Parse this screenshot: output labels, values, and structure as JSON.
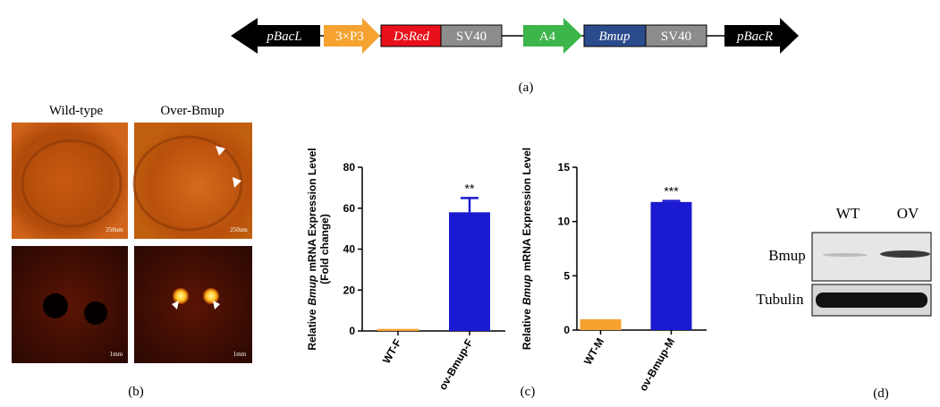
{
  "construct": {
    "elements": [
      "pBacL",
      "3×P3",
      "DsRed",
      "SV40",
      "A4",
      "Bmup",
      "SV40",
      "pBacR"
    ],
    "label": "(a)"
  },
  "photos": {
    "columns": [
      "Wild-type",
      "Over-Bmup"
    ],
    "scale_labels": [
      "250um",
      "250um",
      "1mm",
      "1mm"
    ],
    "label": "(b)"
  },
  "chart_data": [
    {
      "type": "bar",
      "ylabel_parts": [
        "Relative",
        "Bmup",
        "mRNA Expression Level"
      ],
      "ylabel_line2": "(Fold change)",
      "categories": [
        "WT-F",
        "ov-Bmup-F"
      ],
      "values": [
        1,
        58
      ],
      "errors": [
        null,
        7
      ],
      "colors": [
        "#f5a231",
        "#1a1ad0"
      ],
      "annotations": [
        null,
        "**"
      ],
      "ylim": [
        0,
        80
      ],
      "yticks": [
        0,
        20,
        40,
        60,
        80
      ]
    },
    {
      "type": "bar",
      "ylabel_parts": [
        "Relative",
        "Bmup",
        "mRNA Expression Level"
      ],
      "categories": [
        "WT-M",
        "ov-Bmup-M"
      ],
      "values": [
        1,
        11.8
      ],
      "errors": [
        null,
        0.1
      ],
      "colors": [
        "#f5a231",
        "#1a1ad0"
      ],
      "annotations": [
        null,
        "***"
      ],
      "ylim": [
        0,
        15
      ],
      "yticks": [
        0,
        5,
        10,
        15
      ]
    }
  ],
  "chart_label": "(c)",
  "blot": {
    "lanes": [
      "WT",
      "OV"
    ],
    "rows": [
      "Bmup",
      "Tubulin"
    ],
    "label": "(d)"
  }
}
